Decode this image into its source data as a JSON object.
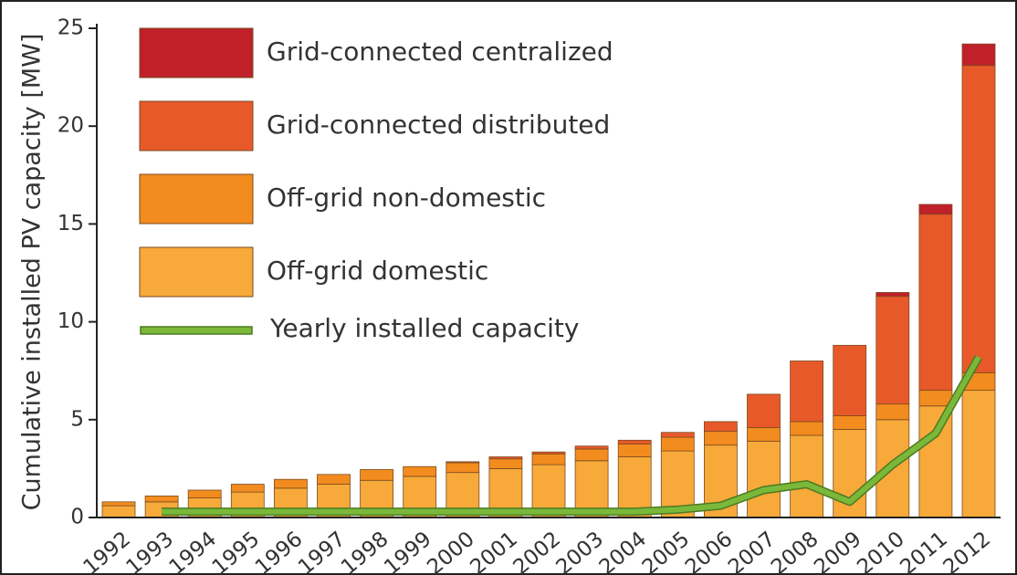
{
  "chart_data": {
    "type": "bar",
    "stacked": true,
    "ylabel": "Cumulative installed PV capacity [MW]",
    "categories": [
      "1992",
      "1993",
      "1994",
      "1995",
      "1996",
      "1997",
      "1998",
      "1999",
      "2000",
      "2001",
      "2002",
      "2003",
      "2004",
      "2005",
      "2006",
      "2007",
      "2008",
      "2009",
      "2010",
      "2011",
      "2012"
    ],
    "series": [
      {
        "name": "Grid-connected centralized",
        "color": "#c0202a",
        "values": [
          0,
          0,
          0,
          0,
          0,
          0,
          0,
          0,
          0,
          0,
          0,
          0,
          0,
          0,
          0,
          0,
          0,
          0,
          0.2,
          0.5,
          1.1
        ]
      },
      {
        "name": "Grid-connected distributed",
        "color": "#e8592a",
        "values": [
          0,
          0,
          0,
          0,
          0,
          0,
          0,
          0,
          0.05,
          0.1,
          0.1,
          0.15,
          0.2,
          0.25,
          0.5,
          1.7,
          3.1,
          3.6,
          5.5,
          9.0,
          15.7
        ]
      },
      {
        "name": "Off-grid non-domestic",
        "color": "#f28c1e",
        "values": [
          0.2,
          0.3,
          0.4,
          0.4,
          0.45,
          0.5,
          0.55,
          0.5,
          0.5,
          0.5,
          0.55,
          0.6,
          0.65,
          0.7,
          0.7,
          0.7,
          0.7,
          0.7,
          0.8,
          0.8,
          0.9
        ]
      },
      {
        "name": "Off-grid domestic",
        "color": "#f7a93a",
        "values": [
          0.6,
          0.8,
          1.0,
          1.3,
          1.5,
          1.7,
          1.9,
          2.1,
          2.3,
          2.5,
          2.7,
          2.9,
          3.1,
          3.4,
          3.7,
          3.9,
          4.2,
          4.5,
          5.0,
          5.7,
          6.5
        ]
      },
      {
        "name": "Yearly installed capacity",
        "type": "line",
        "color": "#7ab83a",
        "values": [
          null,
          0.3,
          0.3,
          0.3,
          0.3,
          0.3,
          0.3,
          0.3,
          0.3,
          0.3,
          0.3,
          0.3,
          0.3,
          0.4,
          0.6,
          1.4,
          1.7,
          0.8,
          2.7,
          4.3,
          8.2
        ]
      }
    ],
    "ylim": [
      0,
      25
    ],
    "yticks": [
      0,
      5,
      10,
      15,
      20,
      25
    ],
    "legend": "upper left"
  }
}
